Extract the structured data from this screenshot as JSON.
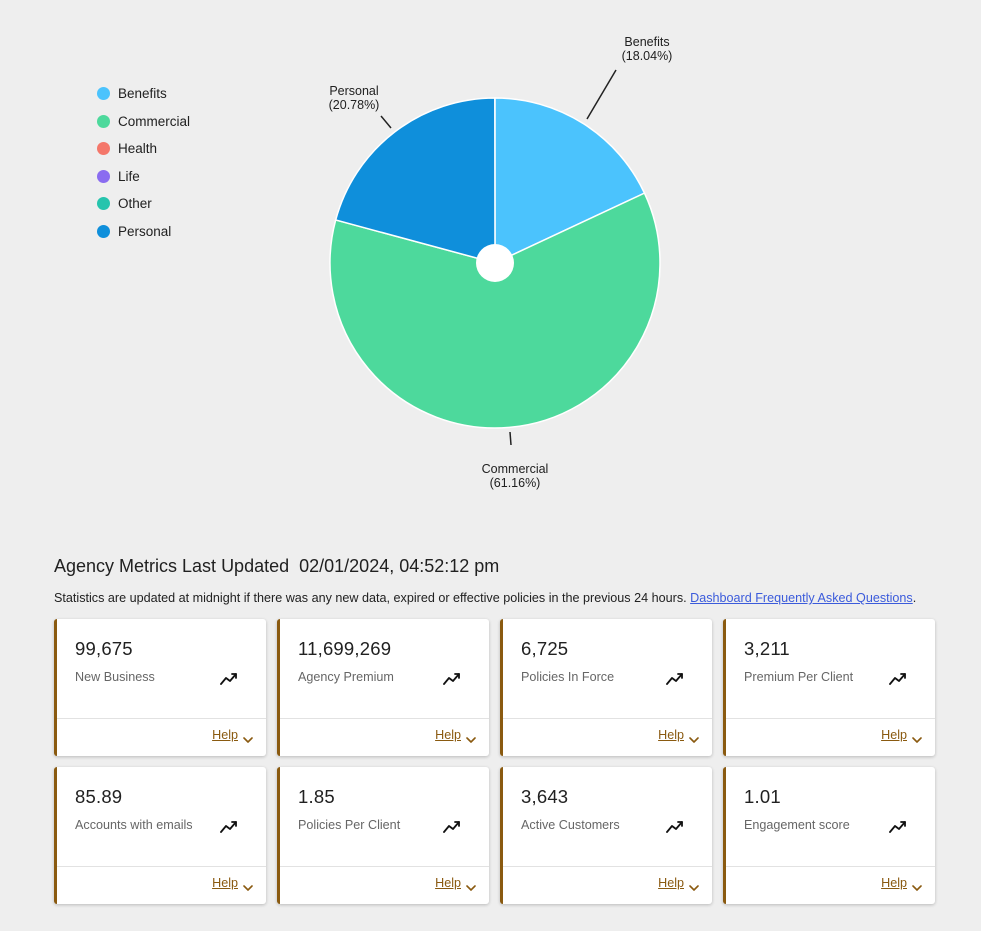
{
  "chart_data": {
    "type": "pie",
    "legend_position": "left",
    "legend": [
      "Benefits",
      "Commercial",
      "Health",
      "Life",
      "Other",
      "Personal"
    ],
    "legend_colors": [
      "#4bc3fd",
      "#4dd99c",
      "#f4776a",
      "#8a6cf0",
      "#26c4ad",
      "#0f8fdb"
    ],
    "slices": [
      {
        "name": "Benefits",
        "percent": 18.04,
        "color": "#4bc3fd",
        "label": "Benefits",
        "pct_label": "(18.04%)"
      },
      {
        "name": "Commercial",
        "percent": 61.16,
        "color": "#4dd99c",
        "label": "Commercial",
        "pct_label": "(61.16%)"
      },
      {
        "name": "Personal",
        "percent": 20.78,
        "color": "#0f8fdb",
        "label": "Personal",
        "pct_label": "(20.78%)"
      }
    ]
  },
  "metrics": {
    "title": "Agency Metrics Last Updated",
    "timestamp": "02/01/2024, 04:52:12 pm",
    "note": "Statistics are updated at midnight if there was any new data, expired or effective policies in the previous 24 hours.",
    "faq_link": "Dashboard Frequently Asked Questions",
    "note_end": ".",
    "help_label": "Help",
    "cards": [
      {
        "value": "99,675",
        "label": "New Business"
      },
      {
        "value": "11,699,269",
        "label": "Agency Premium"
      },
      {
        "value": "6,725",
        "label": "Policies In Force"
      },
      {
        "value": "3,211",
        "label": "Premium Per Client"
      },
      {
        "value": "85.89",
        "label": "Accounts with emails"
      },
      {
        "value": "1.85",
        "label": "Policies Per Client"
      },
      {
        "value": "3,643",
        "label": "Active Customers"
      },
      {
        "value": "1.01",
        "label": "Engagement score"
      }
    ]
  },
  "icons": {
    "trend": "trending-up-icon",
    "chevron": "chevron-down-icon"
  }
}
